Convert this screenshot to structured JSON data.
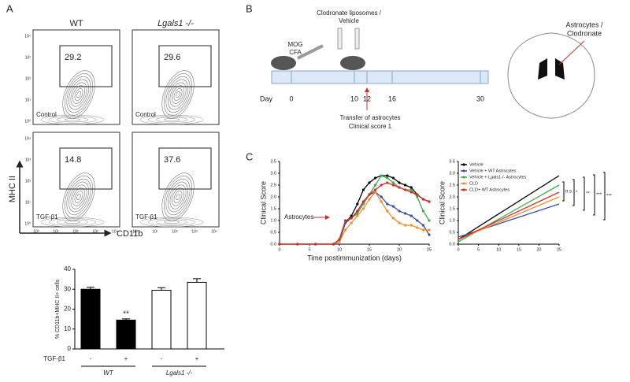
{
  "panel_labels": [
    "A",
    "B",
    "C"
  ],
  "panel_a": {
    "columns": [
      "WT",
      "Lgals1 -/-"
    ],
    "plots": [
      {
        "percent": 29.2,
        "condition": "Control"
      },
      {
        "percent": 29.6,
        "condition": "Control"
      },
      {
        "percent": 14.8,
        "condition": "TGF-β1"
      },
      {
        "percent": 37.6,
        "condition": "TGF-β1"
      }
    ],
    "flow_ticks": [
      "10⁰",
      "10¹",
      "10²",
      "10³",
      "10⁴"
    ],
    "y_label": "MHC II",
    "x_label": "CD11b"
  },
  "panel_b": {
    "injection": [
      "Clodronate liposomes /",
      "Vehicle"
    ],
    "immunization": [
      "MOG",
      "CFA"
    ],
    "day_label": "Day",
    "days": [
      0,
      10,
      12,
      16,
      30
    ],
    "transfer": [
      "Transfer of astrocytes",
      "Clinical score 1"
    ],
    "target": [
      "Astrocytes /",
      "Clodronate"
    ]
  },
  "chart_data": [
    {
      "type": "bar",
      "y_label": "% CD11b+MHC II+ cells",
      "row_label": "TGF-β1",
      "categories": [
        "-",
        "+",
        "-",
        "+"
      ],
      "groups": [
        "WT",
        "Lgals1 -/-"
      ],
      "values": [
        30,
        14.5,
        29.5,
        33.5
      ],
      "errors": [
        1,
        0.6,
        1.3,
        1.8
      ],
      "colors": [
        "#000000",
        "#000000",
        "#ffffff",
        "#ffffff"
      ],
      "significance": [
        null,
        "**",
        null,
        null
      ],
      "ylim": [
        0,
        40
      ],
      "yticks": [
        0,
        10,
        20,
        30,
        40
      ]
    },
    {
      "type": "line",
      "x_label": "Time postimmunization (days)",
      "y_label": "Clinical Score",
      "annotation": "Astrocytes",
      "legend": false,
      "x": [
        0,
        3,
        6,
        9,
        10,
        11,
        12,
        13,
        14,
        15,
        16,
        17,
        18,
        19,
        20,
        21,
        22,
        23,
        24,
        25
      ],
      "series": [
        {
          "color": "#000000",
          "values": [
            0,
            0,
            0,
            0,
            0.2,
            0.9,
            1.2,
            1.7,
            2.3,
            2.6,
            2.8,
            2.9,
            2.9,
            2.8,
            2.6,
            2.5,
            2.4,
            2.1,
            1.9,
            1.8
          ]
        },
        {
          "color": "#3a4fa8",
          "values": [
            0,
            0,
            0,
            0,
            0.1,
            0.9,
            1.1,
            1.4,
            1.8,
            2.1,
            2.2,
            2.0,
            1.7,
            1.6,
            1.4,
            1.3,
            1.2,
            1.0,
            0.8,
            0.4
          ]
        },
        {
          "color": "#3cae49",
          "values": [
            0,
            0,
            0,
            0,
            0.2,
            1.0,
            1.1,
            1.3,
            1.7,
            2.1,
            2.5,
            2.9,
            2.8,
            2.6,
            2.4,
            2.3,
            2.3,
            2.0,
            1.4,
            1.0
          ]
        },
        {
          "color": "#f28c28",
          "values": [
            0,
            0,
            0,
            0,
            0.1,
            0.6,
            0.9,
            1.2,
            1.5,
            1.9,
            2.2,
            1.8,
            1.4,
            1.1,
            0.9,
            0.8,
            0.8,
            0.7,
            0.6,
            0.6
          ]
        },
        {
          "color": "#d62b2b",
          "values": [
            0,
            0,
            0,
            0,
            0.2,
            1.0,
            1.1,
            1.4,
            1.8,
            2.1,
            2.3,
            2.5,
            2.6,
            2.5,
            2.4,
            2.3,
            2.2,
            2.1,
            1.9,
            1.8
          ]
        }
      ],
      "xlim": [
        0,
        25
      ],
      "xticks": [
        0,
        5,
        10,
        15,
        20,
        25
      ],
      "ylim": [
        0,
        3.5
      ],
      "yticks": [
        {
          "value": 0,
          "label": "0.0"
        },
        {
          "value": 0.5,
          "label": "0.5"
        },
        {
          "value": 1,
          "label": "1.0"
        },
        {
          "value": 1.5,
          "label": "1.5"
        },
        {
          "value": 2,
          "label": "2.0"
        },
        {
          "value": 2.5,
          "label": "2.5"
        },
        {
          "value": 3,
          "label": "3.0"
        },
        {
          "value": 3.5,
          "label": "3.5"
        }
      ]
    },
    {
      "type": "line",
      "y_label": "Clinical Score",
      "legend": true,
      "significance": [
        "n.s.",
        "*",
        "**",
        "***",
        "***"
      ],
      "x": [
        0,
        25
      ],
      "series": [
        {
          "name": "Vehicle",
          "color": "#000000",
          "values": [
            0.2,
            2.9
          ]
        },
        {
          "name": "Vehicle + WT Astrocytes",
          "color": "#3a4fa8",
          "values": [
            0.3,
            1.7
          ]
        },
        {
          "name": "Vehicle + Lgals1-/- Astrocytes",
          "color": "#3cae49",
          "values": [
            0.1,
            2.5
          ]
        },
        {
          "name": "CLD",
          "color": "#f28c28",
          "values": [
            0.2,
            2.0
          ]
        },
        {
          "name": "CLD+ WT Astrocytes",
          "color": "#d62b2b",
          "values": [
            0.2,
            2.2
          ]
        }
      ],
      "xlim": [
        0,
        25
      ],
      "xticks": [
        0,
        5,
        10,
        15,
        20,
        25
      ],
      "ylim": [
        0,
        3.5
      ],
      "yticks": [
        {
          "value": 0,
          "label": "0.0"
        },
        {
          "value": 0.5,
          "label": "0.5"
        },
        {
          "value": 1,
          "label": "1.0"
        },
        {
          "value": 1.5,
          "label": "1.5"
        },
        {
          "value": 2,
          "label": "2.0"
        },
        {
          "value": 2.5,
          "label": "2.5"
        },
        {
          "value": 3,
          "label": "3.0"
        },
        {
          "value": 3.5,
          "label": "3.5"
        }
      ]
    }
  ]
}
